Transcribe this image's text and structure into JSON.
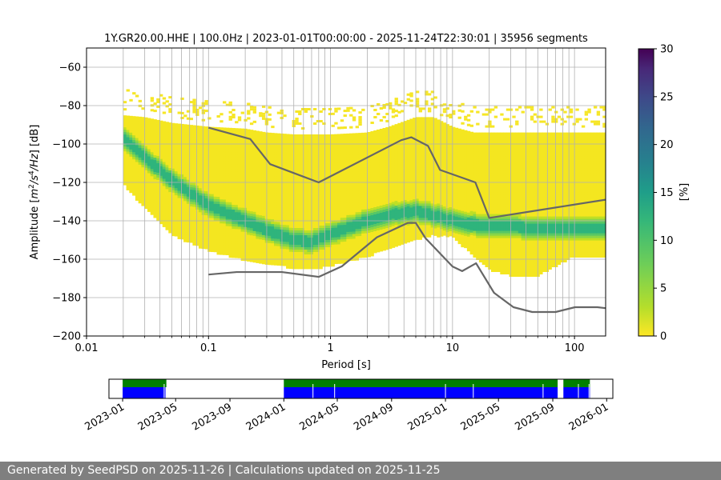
{
  "chart_data": [
    {
      "type": "heatmap",
      "title": "1Y.GR20.00.HHE | 100.0Hz | 2023-01-01T00:00:00 - 2025-11-24T22:30:01 | 35956 segments",
      "xlabel": "Period [s]",
      "ylabel_parts": [
        "Amplitude [",
        "m",
        "2",
        "/s",
        "4",
        "/Hz",
        "] [dB]"
      ],
      "xscale": "log",
      "xlim": [
        0.01,
        180
      ],
      "ylim": [
        -200,
        -50
      ],
      "xticks": [
        0.01,
        0.1,
        1,
        10,
        100
      ],
      "xtick_labels": [
        "0.01",
        "0.1",
        "1",
        "10",
        "100"
      ],
      "yticks": [
        -200,
        -180,
        -160,
        -140,
        -120,
        -100,
        -80,
        -60
      ],
      "ytick_labels": [
        "−200",
        "−180",
        "−160",
        "−140",
        "−120",
        "−100",
        "−80",
        "−60"
      ],
      "grid": true,
      "colormap": "viridis",
      "colorbar": {
        "label": "[%]",
        "range": [
          0,
          30
        ],
        "ticks": [
          0,
          5,
          10,
          15,
          20,
          25,
          30
        ],
        "tick_labels": [
          "0",
          "5",
          "10",
          "15",
          "20",
          "25",
          "30"
        ]
      },
      "psd_envelope": {
        "period": [
          0.02,
          0.03,
          0.05,
          0.1,
          0.2,
          0.3,
          0.5,
          0.7,
          1,
          2,
          3,
          5,
          7,
          10,
          15,
          20,
          30,
          50,
          100,
          180
        ],
        "upper_db": [
          -85,
          -86,
          -89,
          -91,
          -92,
          -94,
          -95,
          -95,
          -95,
          -94,
          -91,
          -86,
          -86,
          -91,
          -94,
          -94,
          -94,
          -94,
          -94,
          -94
        ],
        "lower_db": [
          -120,
          -133,
          -147,
          -155,
          -160,
          -162,
          -164,
          -165,
          -163,
          -158,
          -154,
          -149,
          -147,
          -148,
          -158,
          -165,
          -168,
          -168,
          -158,
          -158
        ]
      },
      "mode_curve": {
        "period": [
          0.02,
          0.03,
          0.05,
          0.1,
          0.2,
          0.3,
          0.5,
          0.7,
          1,
          2,
          3,
          5,
          7,
          10,
          15,
          20,
          30,
          50,
          100,
          180
        ],
        "db": [
          -97,
          -107,
          -119,
          -132,
          -140,
          -145,
          -150,
          -151,
          -147,
          -140,
          -137,
          -135,
          -137,
          -140,
          -142,
          -143,
          -143,
          -144,
          -144,
          -144
        ]
      },
      "nhnm": {
        "period": [
          0.1,
          0.22,
          0.32,
          0.8,
          3.8,
          4.6,
          6.3,
          7.9,
          15.4,
          20,
          180
        ],
        "db": [
          -91.5,
          -97.4,
          -110.5,
          -120,
          -98,
          -96.5,
          -101,
          -113.5,
          -120,
          -138.5,
          -129
        ]
      },
      "nlnm": {
        "period": [
          0.1,
          0.17,
          0.4,
          0.8,
          1.24,
          2.4,
          4.3,
          5,
          6,
          10,
          12,
          15.6,
          21.9,
          31.6,
          45,
          70,
          101,
          154,
          180
        ],
        "db": [
          -168,
          -166.7,
          -166.7,
          -169.2,
          -163.7,
          -148.6,
          -141.1,
          -141.1,
          -149,
          -163.8,
          -166.2,
          -162.1,
          -177.5,
          -185,
          -187.5,
          -187.5,
          -185,
          -185,
          -185.5
        ]
      }
    },
    {
      "type": "timeline",
      "xlim": [
        "2022-12-01",
        "2026-01-15"
      ],
      "xtick_labels": [
        "2023-01",
        "2023-05",
        "2023-09",
        "2024-01",
        "2024-05",
        "2024-09",
        "2025-01",
        "2025-05",
        "2025-09",
        "2026-01"
      ],
      "xtick_dates": [
        "2023-01-01",
        "2023-05-01",
        "2023-09-01",
        "2024-01-01",
        "2024-05-01",
        "2024-09-01",
        "2025-01-01",
        "2025-05-01",
        "2025-09-01",
        "2026-01-01"
      ],
      "coverage_color": "#008000",
      "data_color": "#0000ff",
      "coverage_ranges": [
        [
          "2023-01-01",
          "2023-04-10"
        ],
        [
          "2024-01-01",
          "2025-09-12"
        ],
        [
          "2025-09-25",
          "2025-11-24"
        ]
      ],
      "data_ranges": [
        [
          "2023-01-01",
          "2023-04-08"
        ],
        [
          "2024-01-01",
          "2025-09-12"
        ],
        [
          "2025-09-25",
          "2025-11-24"
        ]
      ],
      "gap_dates": [
        "2023-04-05",
        "2024-03-07",
        "2024-04-25",
        "2025-01-01",
        "2025-03-05",
        "2025-08-10",
        "2025-10-29",
        "2025-11-22"
      ]
    }
  ],
  "footer": {
    "text": "Generated by SeedPSD on 2025-11-26 | Calculations updated on 2025-11-25"
  }
}
